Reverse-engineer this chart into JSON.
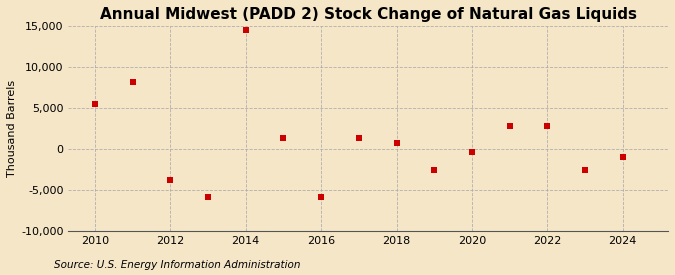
{
  "title": "Annual Midwest (PADD 2) Stock Change of Natural Gas Liquids",
  "ylabel": "Thousand Barrels",
  "source": "Source: U.S. Energy Information Administration",
  "years": [
    2010,
    2011,
    2012,
    2013,
    2014,
    2015,
    2016,
    2017,
    2018,
    2019,
    2020,
    2021,
    2022,
    2023,
    2024
  ],
  "values": [
    5500,
    8200,
    -3800,
    -5800,
    14500,
    1400,
    -5800,
    1400,
    800,
    -2500,
    -300,
    2800,
    2800,
    -2500,
    -1000
  ],
  "marker_color": "#cc0000",
  "marker": "s",
  "marker_size": 18,
  "background_color": "#f5e6c8",
  "grid_color": "#aaaaaa",
  "ylim": [
    -10000,
    15000
  ],
  "xlim": [
    2009.3,
    2025.2
  ],
  "yticks": [
    -10000,
    -5000,
    0,
    5000,
    10000,
    15000
  ],
  "xticks": [
    2010,
    2012,
    2014,
    2016,
    2018,
    2020,
    2022,
    2024
  ],
  "title_fontsize": 11,
  "axis_fontsize": 8,
  "source_fontsize": 7.5
}
